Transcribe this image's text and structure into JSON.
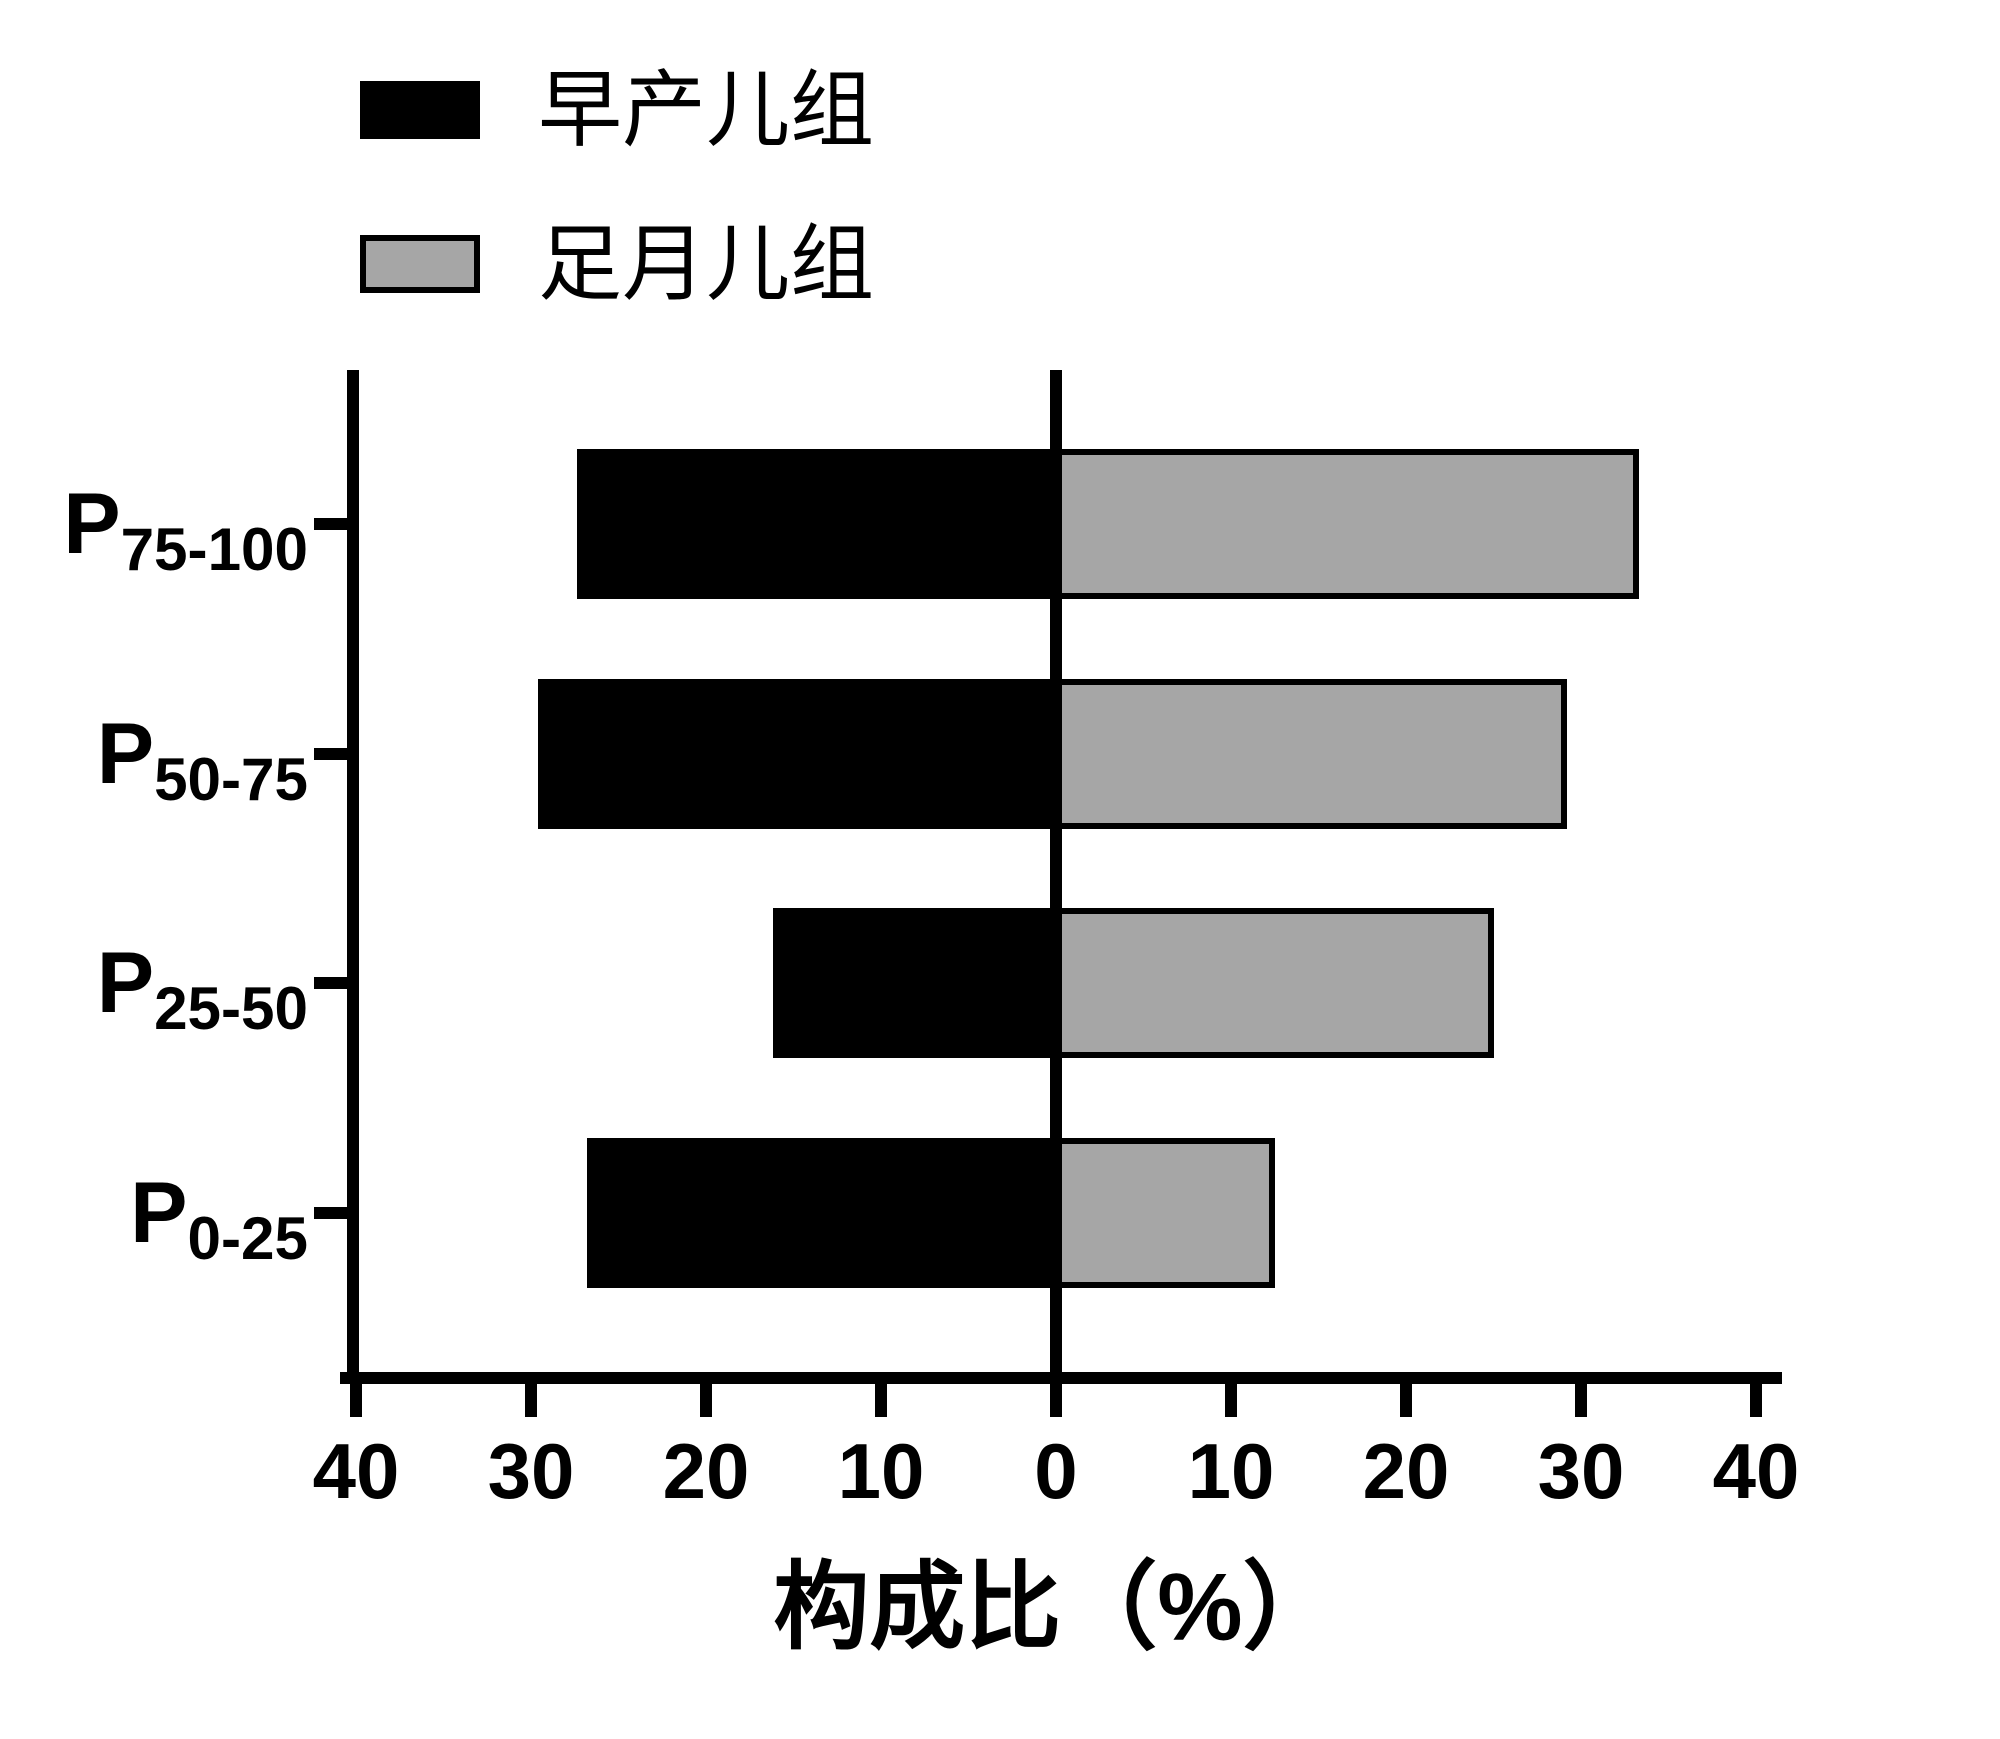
{
  "chart_data": {
    "type": "bar",
    "variant": "diverging-horizontal",
    "title": "",
    "xlabel": "构成比（%）",
    "ylabel": "",
    "categories": [
      {
        "base": "P",
        "sub": "75-100"
      },
      {
        "base": "P",
        "sub": "50-75"
      },
      {
        "base": "P",
        "sub": "25-50"
      },
      {
        "base": "P",
        "sub": "0-25"
      }
    ],
    "series": [
      {
        "name": "早产儿组",
        "side": "left",
        "color": "#000000",
        "values": [
          27.4,
          29.6,
          16.2,
          26.8
        ]
      },
      {
        "name": "足月儿组",
        "side": "right",
        "color": "#a6a6a6",
        "values": [
          33.3,
          29.2,
          25.0,
          12.5
        ]
      }
    ],
    "x_ticks": [
      -40,
      -30,
      -20,
      -10,
      0,
      10,
      20,
      30,
      40
    ],
    "x_tick_labels": [
      "40",
      "30",
      "20",
      "10",
      "0",
      "10",
      "20",
      "30",
      "40"
    ],
    "xlim": [
      -40,
      40
    ],
    "grid": false,
    "legend_position": "top-left",
    "axis_color": "#000000",
    "bar_border_color": "#000000"
  }
}
